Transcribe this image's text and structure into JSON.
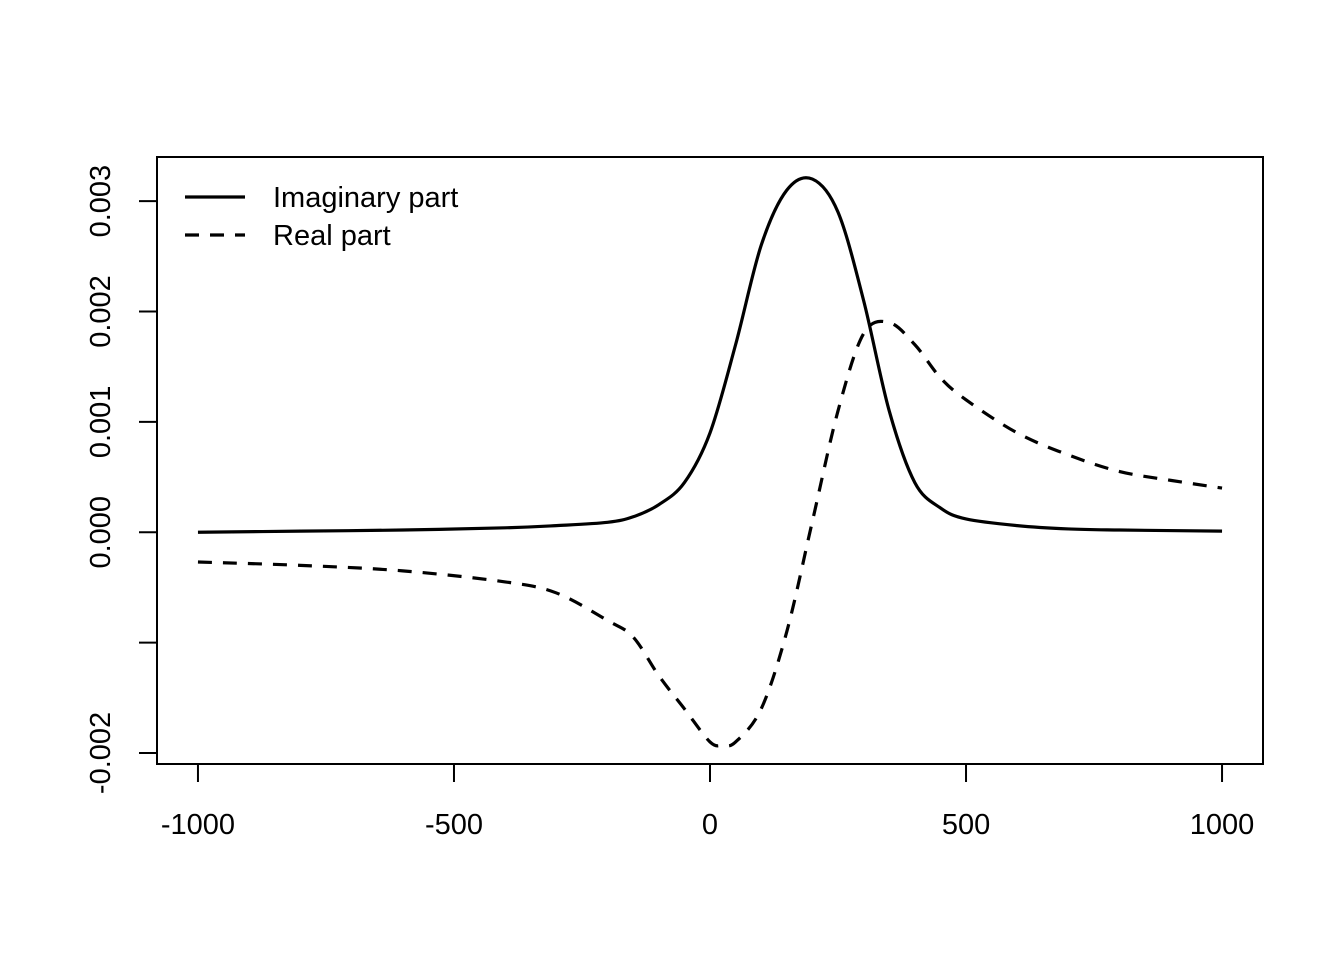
{
  "chart_data": {
    "type": "line",
    "title": "",
    "xlabel": "",
    "ylabel": "",
    "xlim": [
      -1080,
      1080
    ],
    "ylim": [
      -0.0021,
      0.0034
    ],
    "x_ticks": [
      -1000,
      -500,
      0,
      500,
      1000
    ],
    "x_tick_labels": [
      "-1000",
      "-500",
      "0",
      "500",
      "1000"
    ],
    "y_ticks": [
      -0.002,
      -0.001,
      0.0,
      0.001,
      0.002,
      0.003
    ],
    "y_tick_labels": [
      "-0.002",
      "",
      "0.000",
      "0.001",
      "0.002",
      "0.003"
    ],
    "grid": false,
    "legend_position": "top-left",
    "series": [
      {
        "name": "Imaginary part",
        "style": "solid",
        "color": "#000000",
        "x": [
          -1000,
          -800,
          -600,
          -400,
          -300,
          -200,
          -150,
          -100,
          -50,
          0,
          50,
          100,
          150,
          200,
          250,
          300,
          350,
          400,
          450,
          500,
          600,
          700,
          800,
          1000
        ],
        "y": [
          0.0,
          1e-05,
          2e-05,
          4e-05,
          6e-05,
          9e-05,
          0.00014,
          0.00025,
          0.00045,
          0.0009,
          0.0017,
          0.0026,
          0.0031,
          0.0032,
          0.0029,
          0.0021,
          0.0011,
          0.00045,
          0.00022,
          0.00012,
          6e-05,
          3e-05,
          2e-05,
          1e-05
        ]
      },
      {
        "name": "Real part",
        "style": "dashed",
        "color": "#000000",
        "x": [
          -1000,
          -800,
          -600,
          -400,
          -300,
          -200,
          -150,
          -100,
          -50,
          0,
          25,
          50,
          100,
          150,
          200,
          250,
          300,
          350,
          400,
          450,
          500,
          600,
          700,
          800,
          900,
          1000
        ],
        "y": [
          -0.00027,
          -0.0003,
          -0.00035,
          -0.00045,
          -0.00055,
          -0.0008,
          -0.00095,
          -0.0013,
          -0.0016,
          -0.0019,
          -0.00193,
          -0.0019,
          -0.0016,
          -0.0009,
          0.0001,
          0.0011,
          0.0018,
          0.0019,
          0.0017,
          0.0014,
          0.0012,
          0.0009,
          0.0007,
          0.00055,
          0.00047,
          0.0004
        ]
      }
    ]
  }
}
